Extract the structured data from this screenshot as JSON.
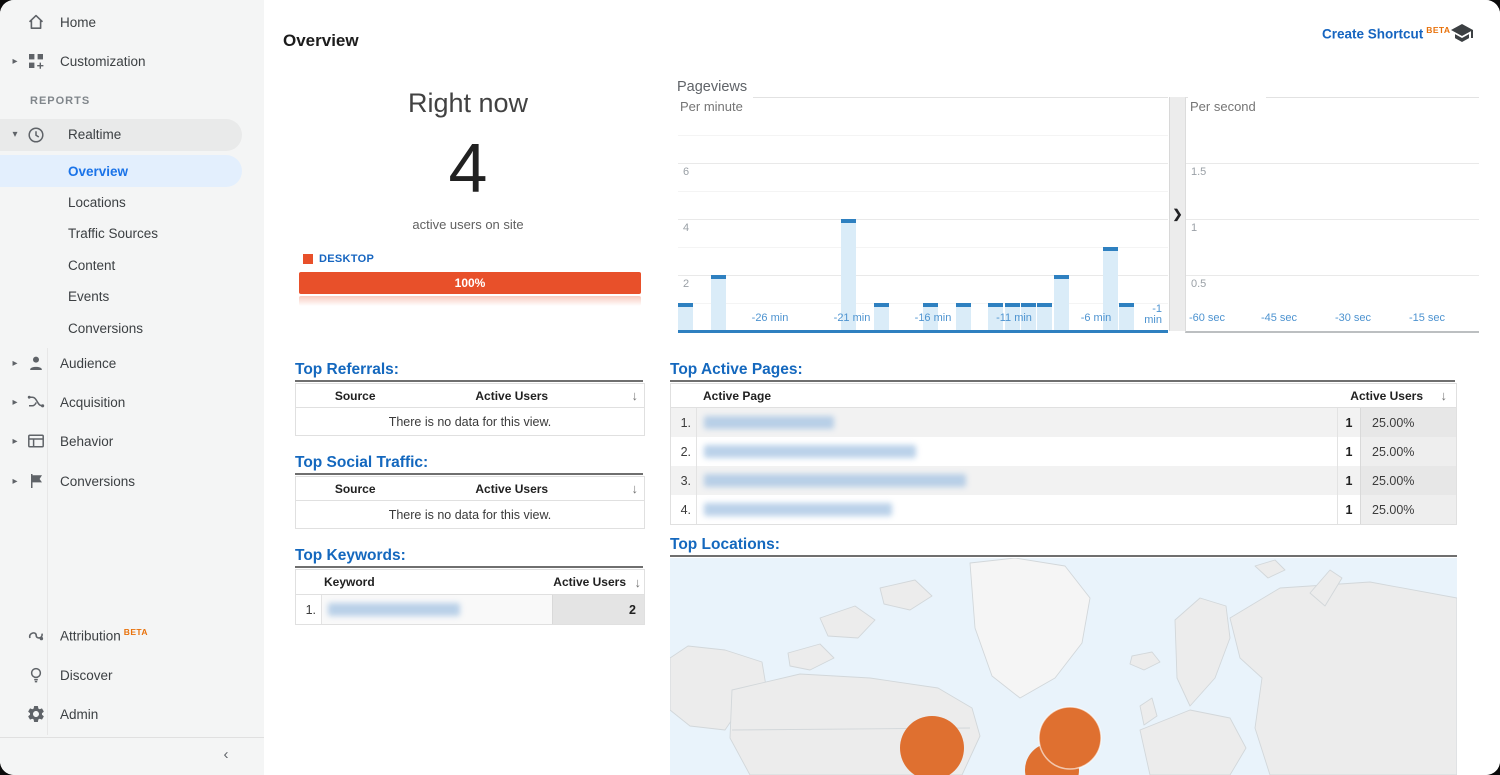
{
  "sidebar": {
    "home": "Home",
    "customization": "Customization",
    "reports_label": "REPORTS",
    "realtime": "Realtime",
    "realtime_children": {
      "overview": "Overview",
      "locations": "Locations",
      "traffic_sources": "Traffic Sources",
      "content": "Content",
      "events": "Events",
      "conversions": "Conversions"
    },
    "audience": "Audience",
    "acquisition": "Acquisition",
    "behavior": "Behavior",
    "conversions": "Conversions",
    "attribution": "Attribution",
    "attribution_beta": "BETA",
    "discover": "Discover",
    "admin": "Admin"
  },
  "header": {
    "title": "Overview",
    "create_shortcut": "Create Shortcut",
    "beta": "BETA"
  },
  "right_now": {
    "title": "Right now",
    "count": "4",
    "subtitle": "active users on site",
    "legend_label": "DESKTOP",
    "bar_value": "100%"
  },
  "pageviews": {
    "title": "Pageviews",
    "per_minute": {
      "type": "bar",
      "label": "Per minute",
      "x_ticks": [
        "-26 min",
        "-21 min",
        "-16 min",
        "-11 min",
        "-6 min",
        "-1 min"
      ],
      "y_ticks": [
        2,
        4,
        6
      ],
      "ylim": [
        0,
        8
      ],
      "values": [
        1,
        0,
        2,
        0,
        0,
        0,
        0,
        0,
        0,
        0,
        4,
        0,
        1,
        0,
        0,
        1,
        0,
        1,
        0,
        1,
        1,
        1,
        1,
        2,
        0,
        0,
        3,
        1,
        0,
        0
      ]
    },
    "per_second": {
      "type": "bar",
      "label": "Per second",
      "x_ticks": [
        "-60 sec",
        "-45 sec",
        "-30 sec",
        "-15 sec"
      ],
      "y_ticks": [
        0.5,
        1,
        1.5
      ],
      "ylim": [
        0,
        2
      ],
      "values": []
    }
  },
  "tables": {
    "referrals": {
      "title": "Top Referrals:",
      "col1": "Source",
      "col2": "Active Users",
      "empty": "There is no data for this view."
    },
    "social": {
      "title": "Top Social Traffic:",
      "col1": "Source",
      "col2": "Active Users",
      "empty": "There is no data for this view."
    },
    "keywords": {
      "title": "Top Keywords:",
      "col1": "Keyword",
      "col2": "Active Users",
      "rows": [
        {
          "rank": "1.",
          "keyword_redacted": true,
          "active_users": "2"
        }
      ]
    },
    "active_pages": {
      "title": "Top Active Pages:",
      "col1": "Active Page",
      "col2": "Active Users",
      "rows": [
        {
          "rank": "1.",
          "page_redacted": true,
          "active_users": "1",
          "percent": "25.00%"
        },
        {
          "rank": "2.",
          "page_redacted": true,
          "active_users": "1",
          "percent": "25.00%"
        },
        {
          "rank": "3.",
          "page_redacted": true,
          "active_users": "1",
          "percent": "25.00%"
        },
        {
          "rank": "4.",
          "page_redacted": true,
          "active_users": "1",
          "percent": "25.00%"
        }
      ]
    },
    "locations": {
      "title": "Top Locations:"
    }
  }
}
